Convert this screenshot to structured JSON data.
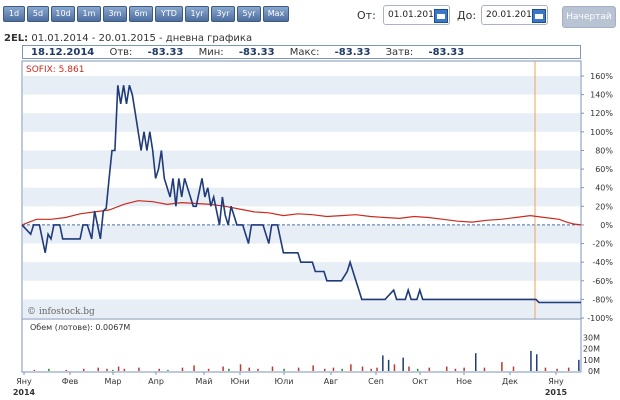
{
  "periods": [
    "1d",
    "5d",
    "10d",
    "1m",
    "3m",
    "6m",
    "YTD",
    "1yr",
    "3yr",
    "5yr",
    "Max"
  ],
  "date_from_label": "От:",
  "date_from": "01.01.2014",
  "date_to_label": "До:",
  "date_to": "20.01.2015",
  "go_label": "Начертай",
  "title_symbol": "2EL:",
  "title_rest": "01.01.2014 - 20.01.2015 - дневна графика",
  "ohlc": {
    "date": "18.12.2014",
    "open_label": "Отв:",
    "open": "-83.33",
    "min_label": "Мин:",
    "min": "-83.33",
    "max_label": "Макс:",
    "max": "-83.33",
    "close_label": "Затв:",
    "close": "-83.33"
  },
  "legend_sofix": "SOFIX: 5.861",
  "watermark": "© infostock.bg",
  "volume_label": "Обем (лотове): 0.0067M",
  "colors": {
    "stock": "#1f3b7a",
    "sofix": "#cc2a1e",
    "cursor": "#f0a05a",
    "grid": "#e8eef6"
  },
  "chart_data": {
    "type": "line",
    "x_tick_labels": [
      "Яну\n2014",
      "Фев",
      "Мар",
      "Апр",
      "Май",
      "Юни",
      "Юли",
      "Авг",
      "Сеп",
      "Окт",
      "Ное",
      "Дек",
      "Яну\n2015"
    ],
    "y_tick_labels": [
      "160%",
      "140%",
      "120%",
      "100%",
      "80%",
      "60%",
      "40%",
      "20%",
      "0%",
      "-20%",
      "-40%",
      "-60%",
      "-80%",
      "-100%"
    ],
    "ylim": [
      -100,
      160
    ],
    "series": [
      {
        "name": "2EL",
        "values": [
          [
            0,
            0
          ],
          [
            6,
            -10
          ],
          [
            8,
            0
          ],
          [
            12,
            0
          ],
          [
            14,
            -15
          ],
          [
            16,
            -30
          ],
          [
            18,
            -10
          ],
          [
            20,
            -15
          ],
          [
            22,
            0
          ],
          [
            26,
            0
          ],
          [
            28,
            -15
          ],
          [
            35,
            -15
          ],
          [
            40,
            -15
          ],
          [
            42,
            0
          ],
          [
            45,
            0
          ],
          [
            48,
            -15
          ],
          [
            50,
            15
          ],
          [
            52,
            0
          ],
          [
            54,
            -15
          ],
          [
            56,
            15
          ],
          [
            58,
            18
          ],
          [
            60,
            50
          ],
          [
            62,
            80
          ],
          [
            64,
            80
          ],
          [
            66,
            150
          ],
          [
            68,
            130
          ],
          [
            70,
            150
          ],
          [
            72,
            130
          ],
          [
            74,
            150
          ],
          [
            76,
            140
          ],
          [
            78,
            120
          ],
          [
            80,
            100
          ],
          [
            82,
            80
          ],
          [
            84,
            100
          ],
          [
            86,
            80
          ],
          [
            88,
            100
          ],
          [
            90,
            80
          ],
          [
            92,
            50
          ],
          [
            94,
            60
          ],
          [
            96,
            80
          ],
          [
            98,
            50
          ],
          [
            100,
            40
          ],
          [
            102,
            30
          ],
          [
            104,
            50
          ],
          [
            106,
            20
          ],
          [
            108,
            50
          ],
          [
            110,
            30
          ],
          [
            112,
            50
          ],
          [
            114,
            40
          ],
          [
            116,
            30
          ],
          [
            118,
            20
          ],
          [
            120,
            20
          ],
          [
            124,
            50
          ],
          [
            126,
            30
          ],
          [
            128,
            40
          ],
          [
            130,
            20
          ],
          [
            132,
            30
          ],
          [
            136,
            0
          ],
          [
            138,
            30
          ],
          [
            140,
            10
          ],
          [
            142,
            0
          ],
          [
            144,
            20
          ],
          [
            146,
            10
          ],
          [
            148,
            0
          ],
          [
            152,
            0
          ],
          [
            154,
            -10
          ],
          [
            156,
            -20
          ],
          [
            158,
            0
          ],
          [
            162,
            0
          ],
          [
            166,
            0
          ],
          [
            170,
            -20
          ],
          [
            172,
            0
          ],
          [
            176,
            0
          ],
          [
            180,
            -30
          ],
          [
            190,
            -30
          ],
          [
            192,
            -40
          ],
          [
            200,
            -40
          ],
          [
            202,
            -50
          ],
          [
            208,
            -50
          ],
          [
            210,
            -60
          ],
          [
            220,
            -60
          ],
          [
            224,
            -50
          ],
          [
            226,
            -40
          ],
          [
            228,
            -50
          ],
          [
            230,
            -60
          ],
          [
            232,
            -70
          ],
          [
            234,
            -80
          ],
          [
            240,
            -80
          ],
          [
            250,
            -80
          ],
          [
            256,
            -70
          ],
          [
            258,
            -80
          ],
          [
            264,
            -80
          ],
          [
            266,
            -70
          ],
          [
            268,
            -80
          ],
          [
            272,
            -80
          ],
          [
            274,
            -70
          ],
          [
            276,
            -80
          ],
          [
            282,
            -80
          ],
          [
            290,
            -80
          ],
          [
            300,
            -80
          ],
          [
            320,
            -80
          ],
          [
            340,
            -80
          ],
          [
            354,
            -80
          ],
          [
            356,
            -83.33
          ],
          [
            385,
            -83.33
          ]
        ]
      },
      {
        "name": "SOFIX",
        "values": [
          [
            0,
            0
          ],
          [
            5,
            3
          ],
          [
            10,
            6
          ],
          [
            20,
            6
          ],
          [
            30,
            8
          ],
          [
            40,
            12
          ],
          [
            50,
            14
          ],
          [
            60,
            16
          ],
          [
            70,
            22
          ],
          [
            80,
            26
          ],
          [
            90,
            25
          ],
          [
            100,
            22
          ],
          [
            110,
            24
          ],
          [
            120,
            23
          ],
          [
            130,
            22
          ],
          [
            140,
            20
          ],
          [
            150,
            17
          ],
          [
            160,
            14
          ],
          [
            170,
            13
          ],
          [
            180,
            10
          ],
          [
            190,
            12
          ],
          [
            200,
            11
          ],
          [
            210,
            9
          ],
          [
            220,
            10
          ],
          [
            230,
            11
          ],
          [
            240,
            9
          ],
          [
            250,
            8
          ],
          [
            260,
            7
          ],
          [
            270,
            9
          ],
          [
            280,
            8
          ],
          [
            290,
            6
          ],
          [
            300,
            4
          ],
          [
            310,
            3
          ],
          [
            320,
            5
          ],
          [
            330,
            6
          ],
          [
            340,
            8
          ],
          [
            350,
            10
          ],
          [
            360,
            8
          ],
          [
            370,
            6
          ],
          [
            375,
            3
          ],
          [
            380,
            1
          ],
          [
            385,
            0
          ]
        ]
      }
    ],
    "volume": {
      "y_tick_labels": [
        "30M",
        "20M",
        "10M",
        "0M"
      ],
      "ylim": [
        0,
        35
      ]
    }
  }
}
